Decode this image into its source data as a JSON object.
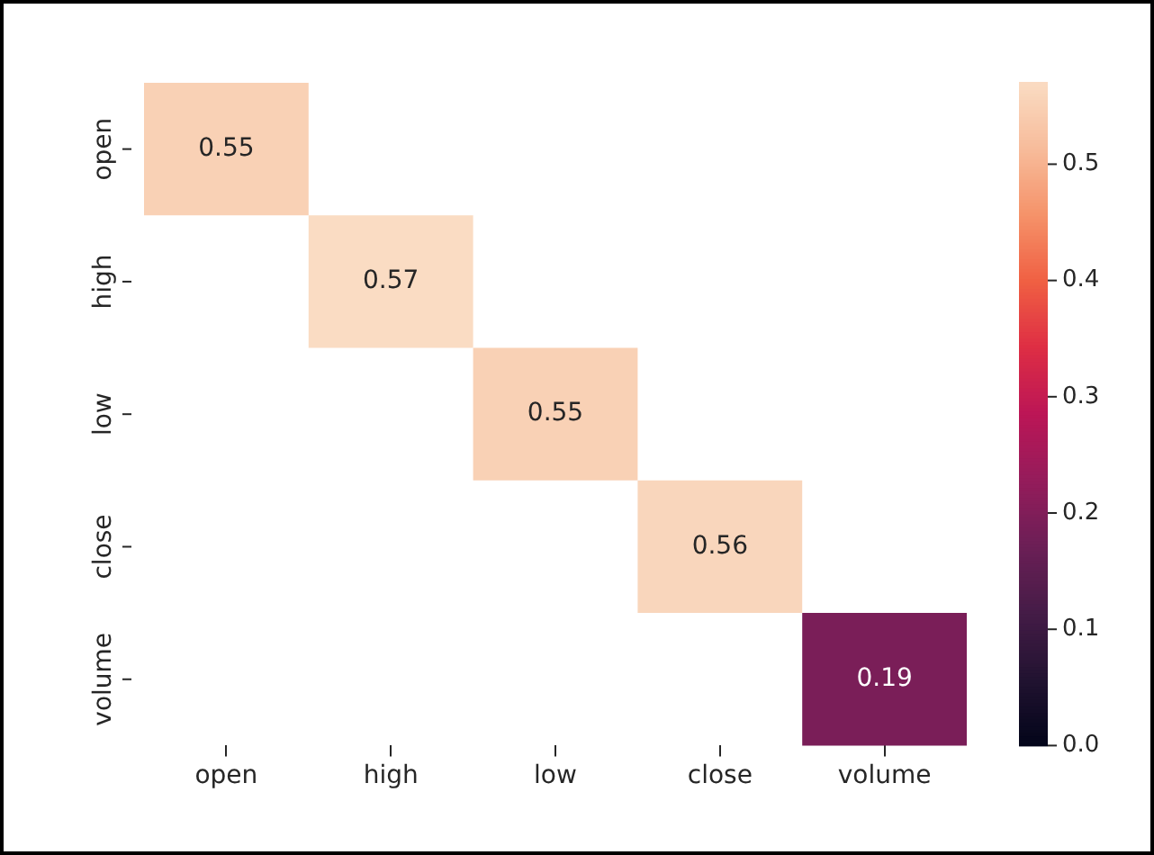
{
  "chart_data": {
    "type": "heatmap",
    "categories": [
      "open",
      "high",
      "low",
      "close",
      "volume"
    ],
    "y_categories": [
      "open",
      "high",
      "low",
      "close",
      "volume"
    ],
    "cells": [
      [
        0.55,
        null,
        null,
        null,
        null
      ],
      [
        null,
        0.57,
        null,
        null,
        null
      ],
      [
        null,
        null,
        0.55,
        null,
        null
      ],
      [
        null,
        null,
        null,
        0.56,
        null
      ],
      [
        null,
        null,
        null,
        null,
        0.19
      ]
    ],
    "data_labels": true,
    "clim": [
      0,
      0.57
    ],
    "cticks": [
      {
        "value": 0,
        "label": "0.0"
      },
      0.1,
      0.2,
      0.3,
      0.4,
      0.5
    ]
  }
}
